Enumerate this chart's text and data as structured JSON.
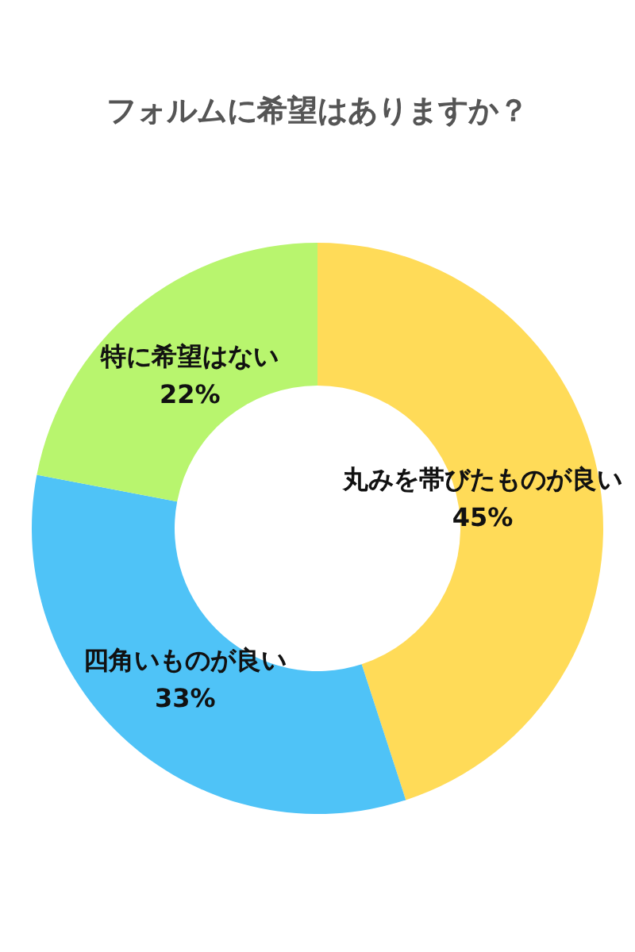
{
  "chart_data": {
    "type": "donut",
    "title": "フォルムに希望はありますか？",
    "categories": [
      "丸みを帯びたものが良い",
      "四角いものが良い",
      "特に希望はない"
    ],
    "values": [
      45,
      33,
      22
    ],
    "value_labels": [
      "45%",
      "33%",
      "22%"
    ],
    "colors": [
      "#ffdb58",
      "#4fc3f7",
      "#b8f56e"
    ]
  }
}
